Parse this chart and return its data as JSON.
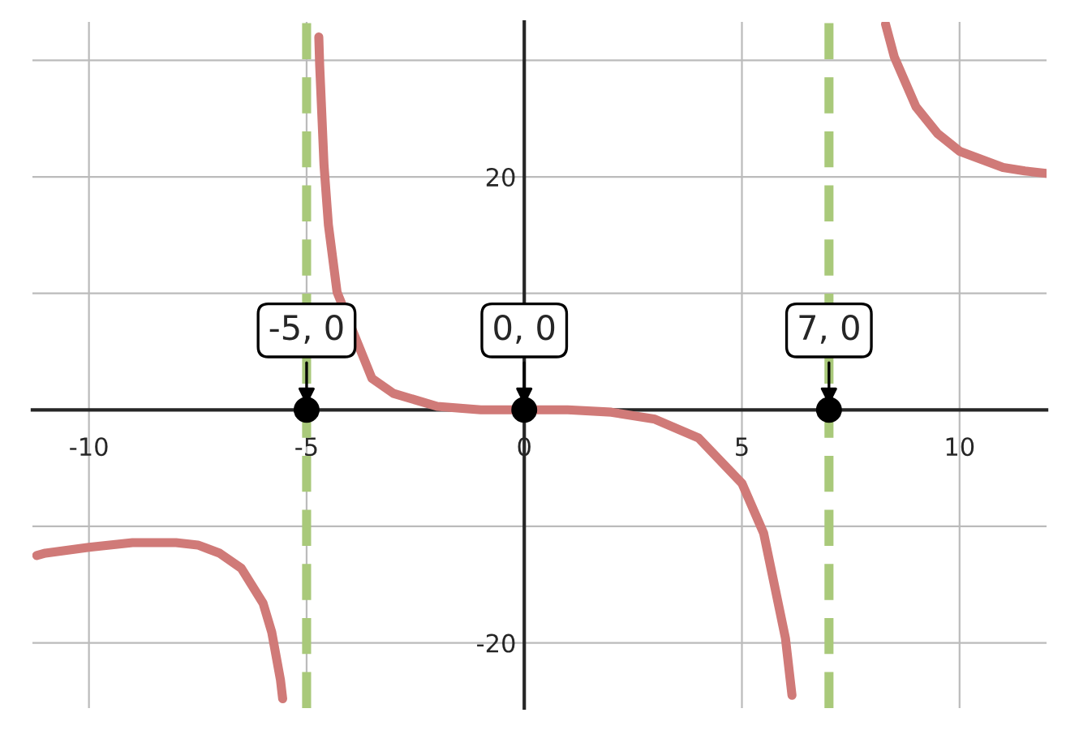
{
  "chart_data": {
    "type": "line",
    "xlim": [
      -11.3,
      12
    ],
    "ylim": [
      -25.6,
      33.3
    ],
    "xticks": [
      -10,
      -5,
      0,
      5,
      10
    ],
    "yticks": [
      -20,
      {
        "value": -10,
        "label": null
      },
      {
        "value": 10,
        "label": null
      },
      20,
      {
        "value": 30,
        "label": null
      }
    ],
    "grid": true,
    "series": [
      {
        "color": "#d07a78",
        "x": [
          -11.2,
          -11,
          -10,
          -9,
          -8,
          -7.5,
          -7,
          -6.5,
          -6,
          -5.8,
          -5.6,
          -5.55,
          null,
          -4.72,
          -4.7,
          -4.6,
          -4.5,
          -4.3,
          -3.5,
          -3,
          -2,
          -1,
          0,
          1,
          2,
          3,
          4,
          5,
          5.5,
          6,
          6.15,
          null,
          8.3,
          8.5,
          9,
          9.5,
          10,
          11,
          11.5,
          12
        ],
        "values": [
          -12.5,
          -12.3,
          -11.8,
          -11.4,
          -11.4,
          -11.6,
          -12.3,
          -13.6,
          -16.6,
          -19.1,
          -23.2,
          -24.8,
          null,
          32.0,
          29.6,
          21.0,
          15.9,
          10.1,
          2.7,
          1.4,
          0.3,
          0.0,
          0,
          0.0,
          -0.2,
          -0.8,
          -2.4,
          -6.3,
          -10.6,
          -19.6,
          -24.5,
          null,
          33.1,
          30.3,
          26.0,
          23.7,
          22.2,
          20.8,
          20.5,
          20.3
        ]
      },
      {
        "type": "scatter",
        "color": "#000000",
        "marker": "circle",
        "x": [
          -5,
          0,
          7
        ],
        "values": [
          0,
          0,
          0
        ]
      }
    ],
    "ref_lines": [
      {
        "axis": "x",
        "value": -5,
        "color": "#a9c97a",
        "line_style": "dashed"
      },
      {
        "axis": "x",
        "value": 7,
        "color": "#a9c97a",
        "line_style": "dashed"
      }
    ],
    "annotations": [
      {
        "text": "-5, 0",
        "x": -5,
        "y": 0
      },
      {
        "text": "0, 0",
        "x": 0,
        "y": 0
      },
      {
        "text": "7, 0",
        "x": 7,
        "y": 0
      }
    ]
  }
}
